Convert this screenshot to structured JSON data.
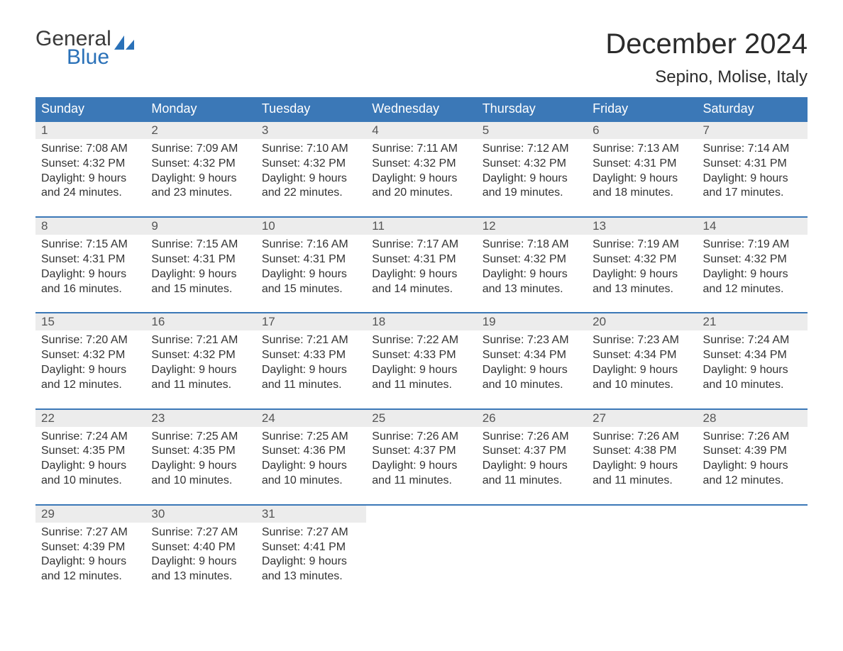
{
  "logo": {
    "text1": "General",
    "text2": "Blue",
    "text_color": "#3a3a3a",
    "accent_color": "#2a71b8"
  },
  "title": "December 2024",
  "location": "Sepino, Molise, Italy",
  "colors": {
    "header_bg": "#3b78b7",
    "header_text": "#ffffff",
    "daynum_bg": "#ececec",
    "daynum_text": "#555555",
    "border_color": "#3b78b7",
    "body_text": "#333333"
  },
  "typography": {
    "title_fontsize": 40,
    "location_fontsize": 24,
    "header_fontsize": 18,
    "cell_fontsize": 16
  },
  "day_headers": [
    "Sunday",
    "Monday",
    "Tuesday",
    "Wednesday",
    "Thursday",
    "Friday",
    "Saturday"
  ],
  "weeks": [
    [
      {
        "num": "1",
        "sunrise": "Sunrise: 7:08 AM",
        "sunset": "Sunset: 4:32 PM",
        "day1": "Daylight: 9 hours",
        "day2": "and 24 minutes."
      },
      {
        "num": "2",
        "sunrise": "Sunrise: 7:09 AM",
        "sunset": "Sunset: 4:32 PM",
        "day1": "Daylight: 9 hours",
        "day2": "and 23 minutes."
      },
      {
        "num": "3",
        "sunrise": "Sunrise: 7:10 AM",
        "sunset": "Sunset: 4:32 PM",
        "day1": "Daylight: 9 hours",
        "day2": "and 22 minutes."
      },
      {
        "num": "4",
        "sunrise": "Sunrise: 7:11 AM",
        "sunset": "Sunset: 4:32 PM",
        "day1": "Daylight: 9 hours",
        "day2": "and 20 minutes."
      },
      {
        "num": "5",
        "sunrise": "Sunrise: 7:12 AM",
        "sunset": "Sunset: 4:32 PM",
        "day1": "Daylight: 9 hours",
        "day2": "and 19 minutes."
      },
      {
        "num": "6",
        "sunrise": "Sunrise: 7:13 AM",
        "sunset": "Sunset: 4:31 PM",
        "day1": "Daylight: 9 hours",
        "day2": "and 18 minutes."
      },
      {
        "num": "7",
        "sunrise": "Sunrise: 7:14 AM",
        "sunset": "Sunset: 4:31 PM",
        "day1": "Daylight: 9 hours",
        "day2": "and 17 minutes."
      }
    ],
    [
      {
        "num": "8",
        "sunrise": "Sunrise: 7:15 AM",
        "sunset": "Sunset: 4:31 PM",
        "day1": "Daylight: 9 hours",
        "day2": "and 16 minutes."
      },
      {
        "num": "9",
        "sunrise": "Sunrise: 7:15 AM",
        "sunset": "Sunset: 4:31 PM",
        "day1": "Daylight: 9 hours",
        "day2": "and 15 minutes."
      },
      {
        "num": "10",
        "sunrise": "Sunrise: 7:16 AM",
        "sunset": "Sunset: 4:31 PM",
        "day1": "Daylight: 9 hours",
        "day2": "and 15 minutes."
      },
      {
        "num": "11",
        "sunrise": "Sunrise: 7:17 AM",
        "sunset": "Sunset: 4:31 PM",
        "day1": "Daylight: 9 hours",
        "day2": "and 14 minutes."
      },
      {
        "num": "12",
        "sunrise": "Sunrise: 7:18 AM",
        "sunset": "Sunset: 4:32 PM",
        "day1": "Daylight: 9 hours",
        "day2": "and 13 minutes."
      },
      {
        "num": "13",
        "sunrise": "Sunrise: 7:19 AM",
        "sunset": "Sunset: 4:32 PM",
        "day1": "Daylight: 9 hours",
        "day2": "and 13 minutes."
      },
      {
        "num": "14",
        "sunrise": "Sunrise: 7:19 AM",
        "sunset": "Sunset: 4:32 PM",
        "day1": "Daylight: 9 hours",
        "day2": "and 12 minutes."
      }
    ],
    [
      {
        "num": "15",
        "sunrise": "Sunrise: 7:20 AM",
        "sunset": "Sunset: 4:32 PM",
        "day1": "Daylight: 9 hours",
        "day2": "and 12 minutes."
      },
      {
        "num": "16",
        "sunrise": "Sunrise: 7:21 AM",
        "sunset": "Sunset: 4:32 PM",
        "day1": "Daylight: 9 hours",
        "day2": "and 11 minutes."
      },
      {
        "num": "17",
        "sunrise": "Sunrise: 7:21 AM",
        "sunset": "Sunset: 4:33 PM",
        "day1": "Daylight: 9 hours",
        "day2": "and 11 minutes."
      },
      {
        "num": "18",
        "sunrise": "Sunrise: 7:22 AM",
        "sunset": "Sunset: 4:33 PM",
        "day1": "Daylight: 9 hours",
        "day2": "and 11 minutes."
      },
      {
        "num": "19",
        "sunrise": "Sunrise: 7:23 AM",
        "sunset": "Sunset: 4:34 PM",
        "day1": "Daylight: 9 hours",
        "day2": "and 10 minutes."
      },
      {
        "num": "20",
        "sunrise": "Sunrise: 7:23 AM",
        "sunset": "Sunset: 4:34 PM",
        "day1": "Daylight: 9 hours",
        "day2": "and 10 minutes."
      },
      {
        "num": "21",
        "sunrise": "Sunrise: 7:24 AM",
        "sunset": "Sunset: 4:34 PM",
        "day1": "Daylight: 9 hours",
        "day2": "and 10 minutes."
      }
    ],
    [
      {
        "num": "22",
        "sunrise": "Sunrise: 7:24 AM",
        "sunset": "Sunset: 4:35 PM",
        "day1": "Daylight: 9 hours",
        "day2": "and 10 minutes."
      },
      {
        "num": "23",
        "sunrise": "Sunrise: 7:25 AM",
        "sunset": "Sunset: 4:35 PM",
        "day1": "Daylight: 9 hours",
        "day2": "and 10 minutes."
      },
      {
        "num": "24",
        "sunrise": "Sunrise: 7:25 AM",
        "sunset": "Sunset: 4:36 PM",
        "day1": "Daylight: 9 hours",
        "day2": "and 10 minutes."
      },
      {
        "num": "25",
        "sunrise": "Sunrise: 7:26 AM",
        "sunset": "Sunset: 4:37 PM",
        "day1": "Daylight: 9 hours",
        "day2": "and 11 minutes."
      },
      {
        "num": "26",
        "sunrise": "Sunrise: 7:26 AM",
        "sunset": "Sunset: 4:37 PM",
        "day1": "Daylight: 9 hours",
        "day2": "and 11 minutes."
      },
      {
        "num": "27",
        "sunrise": "Sunrise: 7:26 AM",
        "sunset": "Sunset: 4:38 PM",
        "day1": "Daylight: 9 hours",
        "day2": "and 11 minutes."
      },
      {
        "num": "28",
        "sunrise": "Sunrise: 7:26 AM",
        "sunset": "Sunset: 4:39 PM",
        "day1": "Daylight: 9 hours",
        "day2": "and 12 minutes."
      }
    ],
    [
      {
        "num": "29",
        "sunrise": "Sunrise: 7:27 AM",
        "sunset": "Sunset: 4:39 PM",
        "day1": "Daylight: 9 hours",
        "day2": "and 12 minutes."
      },
      {
        "num": "30",
        "sunrise": "Sunrise: 7:27 AM",
        "sunset": "Sunset: 4:40 PM",
        "day1": "Daylight: 9 hours",
        "day2": "and 13 minutes."
      },
      {
        "num": "31",
        "sunrise": "Sunrise: 7:27 AM",
        "sunset": "Sunset: 4:41 PM",
        "day1": "Daylight: 9 hours",
        "day2": "and 13 minutes."
      },
      null,
      null,
      null,
      null
    ]
  ]
}
